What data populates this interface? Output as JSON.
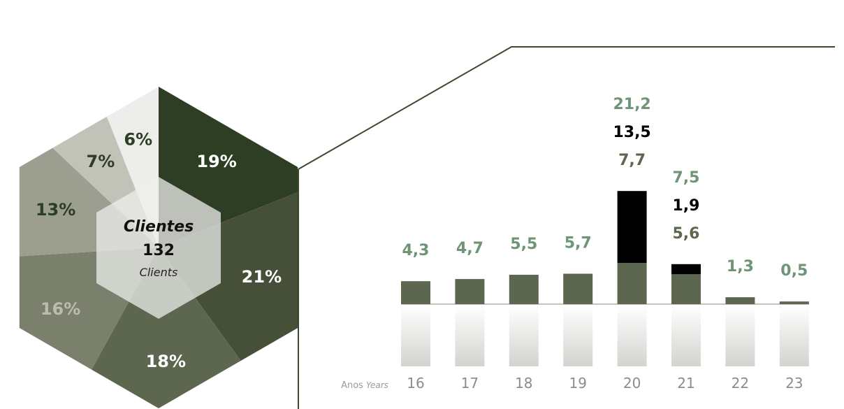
{
  "center": {
    "title": "Clientes",
    "value": "132",
    "subtitle": "Clients"
  },
  "axis": {
    "label_pt": "Anos",
    "label_en": "Years"
  },
  "chart_data": [
    {
      "type": "pie",
      "shape": "hexagon",
      "values": [
        19,
        21,
        18,
        16,
        13,
        7,
        6
      ],
      "labels": [
        "19%",
        "21%",
        "18%",
        "16%",
        "13%",
        "7%",
        "6%"
      ],
      "colors": [
        "#2d3e25",
        "#465039",
        "#5d674f",
        "#7a806c",
        "#9c9f90",
        "#c1c2b8",
        "#ededeb"
      ],
      "label_colors": [
        "#ffffff",
        "#ffffff",
        "#ffffff",
        "#b9bcaf",
        "#2d3e25",
        "#2d3e25",
        "#2d3e25"
      ]
    },
    {
      "type": "bar",
      "categories": [
        "16",
        "17",
        "18",
        "19",
        "20",
        "21",
        "22",
        "23"
      ],
      "series": [
        {
          "values": [
            4.3,
            4.7,
            5.5,
            5.7,
            7.7,
            5.6,
            1.3,
            0.5
          ],
          "color": "#5d674f"
        },
        {
          "values": [
            0,
            0,
            0,
            0,
            13.5,
            1.9,
            0,
            0
          ],
          "color": "#000000"
        }
      ],
      "labels": [
        [
          "4,3"
        ],
        [
          "4,7"
        ],
        [
          "5,5"
        ],
        [
          "5,7"
        ],
        [
          "21,2",
          "13,5",
          "7,7"
        ],
        [
          "7,5",
          "1,9",
          "5,6"
        ],
        [
          "1,3"
        ],
        [
          "0,5"
        ]
      ],
      "label_colors": {
        "total": "#6f9476",
        "stacked_top": "#000000",
        "base": "#5d674f",
        "single": "#6f9476"
      },
      "xlabel": "Anos Years"
    }
  ]
}
